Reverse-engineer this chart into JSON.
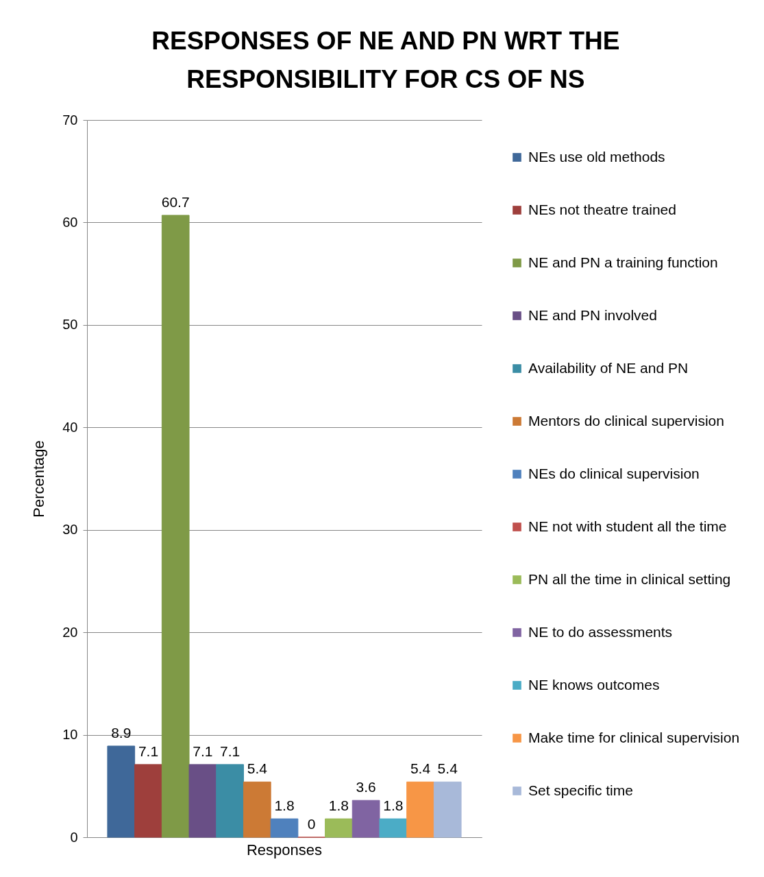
{
  "chart_data": {
    "type": "bar",
    "title": "RESPONSES OF NE AND PN WRT THE RESPONSIBILITY FOR CS OF NS",
    "ylabel": "Percentage",
    "categories": [
      "Responses"
    ],
    "series": [
      {
        "name": "NEs use old methods",
        "color": "#3f6899",
        "values": [
          8.9
        ]
      },
      {
        "name": "NEs not theatre trained",
        "color": "#9e3f3c",
        "values": [
          7.1
        ]
      },
      {
        "name": "NE and PN a training function",
        "color": "#7f9a47",
        "values": [
          60.7
        ]
      },
      {
        "name": "NE and PN involved",
        "color": "#694f86",
        "values": [
          7.1
        ]
      },
      {
        "name": "Availability of NE and PN",
        "color": "#3b8da5",
        "values": [
          7.1
        ]
      },
      {
        "name": "Mentors do clinical supervision",
        "color": "#cc7a35",
        "values": [
          5.4
        ]
      },
      {
        "name": "NEs do clinical supervision",
        "color": "#4f81bd",
        "values": [
          1.8
        ]
      },
      {
        "name": "NE not with student all the time",
        "color": "#c0504d",
        "values": [
          0
        ]
      },
      {
        "name": "PN all the time in clinical setting",
        "color": "#9bbb59",
        "values": [
          1.8
        ]
      },
      {
        "name": "NE to do assessments",
        "color": "#8064a2",
        "values": [
          3.6
        ]
      },
      {
        "name": "NE knows outcomes",
        "color": "#4bacc6",
        "values": [
          1.8
        ]
      },
      {
        "name": "Make time for clinical supervision",
        "color": "#f79646",
        "values": [
          5.4
        ]
      },
      {
        "name": "Set specific time",
        "color": "#a8b9d9",
        "values": [
          5.4
        ]
      }
    ],
    "ylim": [
      0,
      70
    ],
    "yticks": [
      0,
      10,
      20,
      30,
      40,
      50,
      60,
      70
    ],
    "grid": "y",
    "legend": "right",
    "data_labels": true
  }
}
